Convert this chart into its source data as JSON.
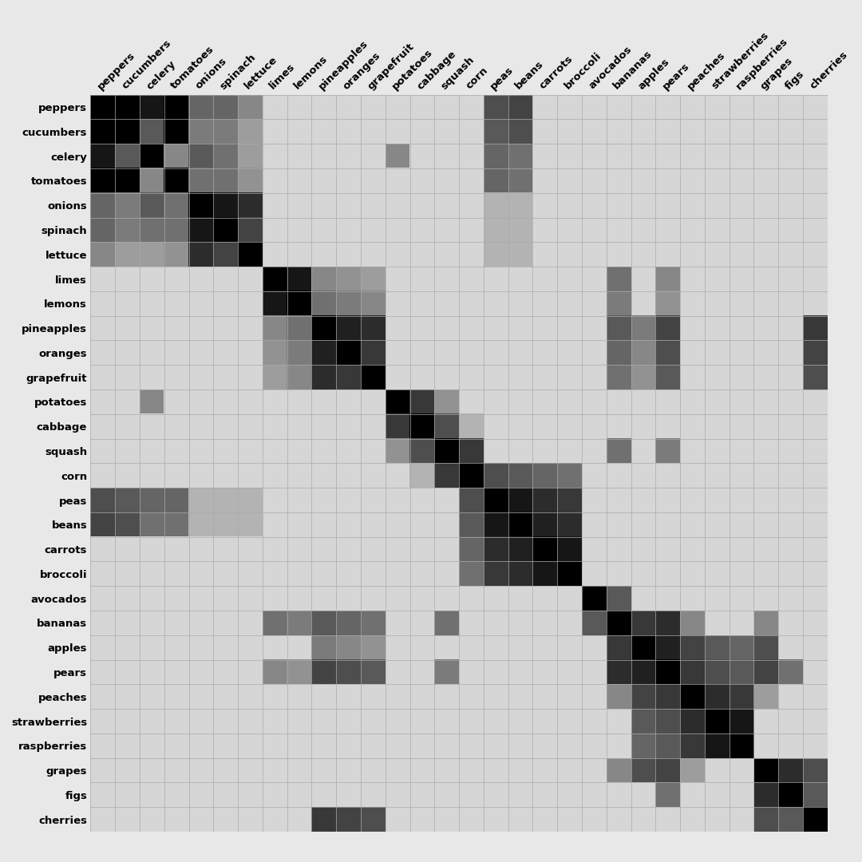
{
  "labels": [
    "peppers",
    "cucumbers",
    "celery",
    "tomatoes",
    "onions",
    "spinach",
    "lettuce",
    "limes",
    "lemons",
    "pineapples",
    "oranges",
    "grapefruit",
    "potatoes",
    "cabbage",
    "squash",
    "corn",
    "peas",
    "beans",
    "carrots",
    "broccoli",
    "avocados",
    "bananas",
    "apples",
    "pears",
    "peaches",
    "strawberries",
    "raspberries",
    "grapes",
    "figs",
    "cherries"
  ],
  "background_color": "#e8e8e8",
  "grid_color": "#aaaaaa",
  "matrix": [
    [
      1.0,
      1.0,
      0.9,
      1.0,
      0.55,
      0.55,
      0.4,
      0.05,
      0.05,
      0.05,
      0.05,
      0.05,
      0.05,
      0.05,
      0.05,
      0.05,
      0.65,
      0.7,
      0.05,
      0.05,
      0.05,
      0.05,
      0.05,
      0.05,
      0.05,
      0.05,
      0.05,
      0.05,
      0.05,
      0.05
    ],
    [
      1.0,
      1.0,
      0.6,
      1.0,
      0.45,
      0.45,
      0.3,
      0.05,
      0.05,
      0.05,
      0.05,
      0.05,
      0.05,
      0.05,
      0.05,
      0.05,
      0.6,
      0.65,
      0.05,
      0.05,
      0.05,
      0.05,
      0.05,
      0.05,
      0.05,
      0.05,
      0.05,
      0.05,
      0.05,
      0.05
    ],
    [
      0.9,
      0.6,
      1.0,
      0.4,
      0.6,
      0.5,
      0.3,
      0.05,
      0.05,
      0.05,
      0.05,
      0.05,
      0.4,
      0.05,
      0.05,
      0.05,
      0.55,
      0.5,
      0.05,
      0.05,
      0.05,
      0.05,
      0.05,
      0.05,
      0.05,
      0.05,
      0.05,
      0.05,
      0.05,
      0.05
    ],
    [
      1.0,
      1.0,
      0.4,
      1.0,
      0.5,
      0.5,
      0.35,
      0.05,
      0.05,
      0.05,
      0.05,
      0.05,
      0.05,
      0.05,
      0.05,
      0.05,
      0.55,
      0.5,
      0.05,
      0.05,
      0.05,
      0.05,
      0.05,
      0.05,
      0.05,
      0.05,
      0.05,
      0.05,
      0.05,
      0.05
    ],
    [
      0.55,
      0.45,
      0.6,
      0.5,
      1.0,
      0.9,
      0.8,
      0.05,
      0.05,
      0.05,
      0.05,
      0.05,
      0.05,
      0.05,
      0.05,
      0.05,
      0.2,
      0.2,
      0.05,
      0.05,
      0.05,
      0.05,
      0.05,
      0.05,
      0.05,
      0.05,
      0.05,
      0.05,
      0.05,
      0.05
    ],
    [
      0.55,
      0.45,
      0.5,
      0.5,
      0.9,
      1.0,
      0.7,
      0.05,
      0.05,
      0.05,
      0.05,
      0.05,
      0.05,
      0.05,
      0.05,
      0.05,
      0.2,
      0.2,
      0.05,
      0.05,
      0.05,
      0.05,
      0.05,
      0.05,
      0.05,
      0.05,
      0.05,
      0.05,
      0.05,
      0.05
    ],
    [
      0.4,
      0.3,
      0.3,
      0.35,
      0.8,
      0.7,
      1.0,
      0.05,
      0.05,
      0.05,
      0.05,
      0.05,
      0.05,
      0.05,
      0.05,
      0.05,
      0.2,
      0.2,
      0.05,
      0.05,
      0.05,
      0.05,
      0.05,
      0.05,
      0.05,
      0.05,
      0.05,
      0.05,
      0.05,
      0.05
    ],
    [
      0.05,
      0.05,
      0.05,
      0.05,
      0.05,
      0.05,
      0.05,
      1.0,
      0.9,
      0.4,
      0.35,
      0.3,
      0.05,
      0.05,
      0.05,
      0.05,
      0.05,
      0.05,
      0.05,
      0.05,
      0.05,
      0.5,
      0.05,
      0.4,
      0.05,
      0.05,
      0.05,
      0.05,
      0.05,
      0.05
    ],
    [
      0.05,
      0.05,
      0.05,
      0.05,
      0.05,
      0.05,
      0.05,
      0.9,
      1.0,
      0.5,
      0.45,
      0.4,
      0.05,
      0.05,
      0.05,
      0.05,
      0.05,
      0.05,
      0.05,
      0.05,
      0.05,
      0.45,
      0.05,
      0.35,
      0.05,
      0.05,
      0.05,
      0.05,
      0.05,
      0.05
    ],
    [
      0.05,
      0.05,
      0.05,
      0.05,
      0.05,
      0.05,
      0.05,
      0.4,
      0.5,
      1.0,
      0.85,
      0.8,
      0.05,
      0.05,
      0.05,
      0.05,
      0.05,
      0.05,
      0.05,
      0.05,
      0.05,
      0.6,
      0.45,
      0.7,
      0.05,
      0.05,
      0.05,
      0.05,
      0.05,
      0.75
    ],
    [
      0.05,
      0.05,
      0.05,
      0.05,
      0.05,
      0.05,
      0.05,
      0.35,
      0.45,
      0.85,
      1.0,
      0.75,
      0.05,
      0.05,
      0.05,
      0.05,
      0.05,
      0.05,
      0.05,
      0.05,
      0.05,
      0.55,
      0.4,
      0.65,
      0.05,
      0.05,
      0.05,
      0.05,
      0.05,
      0.7
    ],
    [
      0.05,
      0.05,
      0.05,
      0.05,
      0.05,
      0.05,
      0.05,
      0.3,
      0.4,
      0.8,
      0.75,
      1.0,
      0.05,
      0.05,
      0.05,
      0.05,
      0.05,
      0.05,
      0.05,
      0.05,
      0.05,
      0.5,
      0.35,
      0.6,
      0.05,
      0.05,
      0.05,
      0.05,
      0.05,
      0.65
    ],
    [
      0.05,
      0.05,
      0.4,
      0.05,
      0.05,
      0.05,
      0.05,
      0.05,
      0.05,
      0.05,
      0.05,
      0.05,
      1.0,
      0.75,
      0.35,
      0.05,
      0.05,
      0.05,
      0.05,
      0.05,
      0.05,
      0.05,
      0.05,
      0.05,
      0.05,
      0.05,
      0.05,
      0.05,
      0.05,
      0.05
    ],
    [
      0.05,
      0.05,
      0.05,
      0.05,
      0.05,
      0.05,
      0.05,
      0.05,
      0.05,
      0.05,
      0.05,
      0.05,
      0.75,
      1.0,
      0.65,
      0.2,
      0.05,
      0.05,
      0.05,
      0.05,
      0.05,
      0.05,
      0.05,
      0.05,
      0.05,
      0.05,
      0.05,
      0.05,
      0.05,
      0.05
    ],
    [
      0.05,
      0.05,
      0.05,
      0.05,
      0.05,
      0.05,
      0.05,
      0.05,
      0.05,
      0.05,
      0.05,
      0.05,
      0.35,
      0.65,
      1.0,
      0.75,
      0.05,
      0.05,
      0.05,
      0.05,
      0.05,
      0.5,
      0.05,
      0.45,
      0.05,
      0.05,
      0.05,
      0.05,
      0.05,
      0.05
    ],
    [
      0.05,
      0.05,
      0.05,
      0.05,
      0.05,
      0.05,
      0.05,
      0.05,
      0.05,
      0.05,
      0.05,
      0.05,
      0.05,
      0.2,
      0.75,
      1.0,
      0.65,
      0.6,
      0.55,
      0.5,
      0.05,
      0.05,
      0.05,
      0.05,
      0.05,
      0.05,
      0.05,
      0.05,
      0.05,
      0.05
    ],
    [
      0.65,
      0.6,
      0.55,
      0.55,
      0.2,
      0.2,
      0.2,
      0.05,
      0.05,
      0.05,
      0.05,
      0.05,
      0.05,
      0.05,
      0.05,
      0.65,
      1.0,
      0.9,
      0.8,
      0.75,
      0.05,
      0.05,
      0.05,
      0.05,
      0.05,
      0.05,
      0.05,
      0.05,
      0.05,
      0.05
    ],
    [
      0.7,
      0.65,
      0.5,
      0.5,
      0.2,
      0.2,
      0.2,
      0.05,
      0.05,
      0.05,
      0.05,
      0.05,
      0.05,
      0.05,
      0.05,
      0.6,
      0.9,
      1.0,
      0.85,
      0.8,
      0.05,
      0.05,
      0.05,
      0.05,
      0.05,
      0.05,
      0.05,
      0.05,
      0.05,
      0.05
    ],
    [
      0.05,
      0.05,
      0.05,
      0.05,
      0.05,
      0.05,
      0.05,
      0.05,
      0.05,
      0.05,
      0.05,
      0.05,
      0.05,
      0.05,
      0.05,
      0.55,
      0.8,
      0.85,
      1.0,
      0.9,
      0.05,
      0.05,
      0.05,
      0.05,
      0.05,
      0.05,
      0.05,
      0.05,
      0.05,
      0.05
    ],
    [
      0.05,
      0.05,
      0.05,
      0.05,
      0.05,
      0.05,
      0.05,
      0.05,
      0.05,
      0.05,
      0.05,
      0.05,
      0.05,
      0.05,
      0.05,
      0.5,
      0.75,
      0.8,
      0.9,
      1.0,
      0.05,
      0.05,
      0.05,
      0.05,
      0.05,
      0.05,
      0.05,
      0.05,
      0.05,
      0.05
    ],
    [
      0.05,
      0.05,
      0.05,
      0.05,
      0.05,
      0.05,
      0.05,
      0.05,
      0.05,
      0.05,
      0.05,
      0.05,
      0.05,
      0.05,
      0.05,
      0.05,
      0.05,
      0.05,
      0.05,
      0.05,
      1.0,
      0.6,
      0.05,
      0.05,
      0.05,
      0.05,
      0.05,
      0.05,
      0.05,
      0.05
    ],
    [
      0.05,
      0.05,
      0.05,
      0.05,
      0.05,
      0.05,
      0.05,
      0.5,
      0.45,
      0.6,
      0.55,
      0.5,
      0.05,
      0.05,
      0.5,
      0.05,
      0.05,
      0.05,
      0.05,
      0.05,
      0.6,
      1.0,
      0.75,
      0.8,
      0.4,
      0.05,
      0.05,
      0.4,
      0.05,
      0.05
    ],
    [
      0.05,
      0.05,
      0.05,
      0.05,
      0.05,
      0.05,
      0.05,
      0.05,
      0.05,
      0.45,
      0.4,
      0.35,
      0.05,
      0.05,
      0.05,
      0.05,
      0.05,
      0.05,
      0.05,
      0.05,
      0.05,
      0.75,
      1.0,
      0.85,
      0.7,
      0.6,
      0.55,
      0.65,
      0.05,
      0.05
    ],
    [
      0.05,
      0.05,
      0.05,
      0.05,
      0.05,
      0.05,
      0.05,
      0.4,
      0.35,
      0.7,
      0.65,
      0.6,
      0.05,
      0.05,
      0.45,
      0.05,
      0.05,
      0.05,
      0.05,
      0.05,
      0.05,
      0.8,
      0.85,
      1.0,
      0.75,
      0.65,
      0.6,
      0.7,
      0.5,
      0.05
    ],
    [
      0.05,
      0.05,
      0.05,
      0.05,
      0.05,
      0.05,
      0.05,
      0.05,
      0.05,
      0.05,
      0.05,
      0.05,
      0.05,
      0.05,
      0.05,
      0.05,
      0.05,
      0.05,
      0.05,
      0.05,
      0.05,
      0.4,
      0.7,
      0.75,
      1.0,
      0.8,
      0.75,
      0.3,
      0.05,
      0.05
    ],
    [
      0.05,
      0.05,
      0.05,
      0.05,
      0.05,
      0.05,
      0.05,
      0.05,
      0.05,
      0.05,
      0.05,
      0.05,
      0.05,
      0.05,
      0.05,
      0.05,
      0.05,
      0.05,
      0.05,
      0.05,
      0.05,
      0.05,
      0.6,
      0.65,
      0.8,
      1.0,
      0.9,
      0.05,
      0.05,
      0.05
    ],
    [
      0.05,
      0.05,
      0.05,
      0.05,
      0.05,
      0.05,
      0.05,
      0.05,
      0.05,
      0.05,
      0.05,
      0.05,
      0.05,
      0.05,
      0.05,
      0.05,
      0.05,
      0.05,
      0.05,
      0.05,
      0.05,
      0.05,
      0.55,
      0.6,
      0.75,
      0.9,
      1.0,
      0.05,
      0.05,
      0.05
    ],
    [
      0.05,
      0.05,
      0.05,
      0.05,
      0.05,
      0.05,
      0.05,
      0.05,
      0.05,
      0.05,
      0.05,
      0.05,
      0.05,
      0.05,
      0.05,
      0.05,
      0.05,
      0.05,
      0.05,
      0.05,
      0.05,
      0.4,
      0.65,
      0.7,
      0.3,
      0.05,
      0.05,
      1.0,
      0.8,
      0.65
    ],
    [
      0.05,
      0.05,
      0.05,
      0.05,
      0.05,
      0.05,
      0.05,
      0.05,
      0.05,
      0.05,
      0.05,
      0.05,
      0.05,
      0.05,
      0.05,
      0.05,
      0.05,
      0.05,
      0.05,
      0.05,
      0.05,
      0.05,
      0.05,
      0.5,
      0.05,
      0.05,
      0.05,
      0.8,
      1.0,
      0.6
    ],
    [
      0.05,
      0.05,
      0.05,
      0.05,
      0.05,
      0.05,
      0.05,
      0.05,
      0.05,
      0.75,
      0.7,
      0.65,
      0.05,
      0.05,
      0.05,
      0.05,
      0.05,
      0.05,
      0.05,
      0.05,
      0.05,
      0.05,
      0.05,
      0.05,
      0.05,
      0.05,
      0.05,
      0.65,
      0.6,
      1.0
    ]
  ]
}
